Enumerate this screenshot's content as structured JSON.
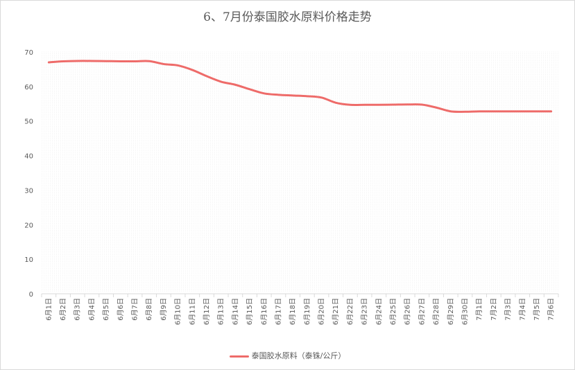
{
  "chart_data": {
    "type": "line",
    "title": "6、7月份泰国胶水原料价格走势",
    "xlabel": "",
    "ylabel": "",
    "ylim": [
      0,
      70
    ],
    "yticks": [
      0,
      10,
      20,
      30,
      40,
      50,
      60,
      70
    ],
    "grid": "dotted-horizontal",
    "legend_position": "bottom",
    "line_color": "#ee6b69",
    "categories": [
      "6月1日",
      "6月2日",
      "6月3日",
      "6月4日",
      "6月5日",
      "6月6日",
      "6月7日",
      "6月8日",
      "6月9日",
      "6月10日",
      "6月11日",
      "6月12日",
      "6月13日",
      "6月14日",
      "6月15日",
      "6月16日",
      "6月17日",
      "6月18日",
      "6月19日",
      "6月20日",
      "6月21日",
      "6月22日",
      "6月23日",
      "6月24日",
      "6月25日",
      "6月26日",
      "6月27日",
      "6月28日",
      "6月29日",
      "6月30日",
      "7月1日",
      "7月2日",
      "7月3日",
      "7月4日",
      "7月5日",
      "7月6日"
    ],
    "series": [
      {
        "name": "泰国胶水原料（泰铢/公斤）",
        "values": [
          67.0,
          67.3,
          67.4,
          67.4,
          67.35,
          67.3,
          67.3,
          67.35,
          66.5,
          66.1,
          64.8,
          63.0,
          61.4,
          60.5,
          59.2,
          58.0,
          57.6,
          57.4,
          57.2,
          56.8,
          55.3,
          54.7,
          54.7,
          54.7,
          54.75,
          54.8,
          54.75,
          53.9,
          52.8,
          52.7,
          52.8,
          52.8,
          52.8,
          52.8,
          52.8,
          52.8
        ]
      }
    ]
  }
}
